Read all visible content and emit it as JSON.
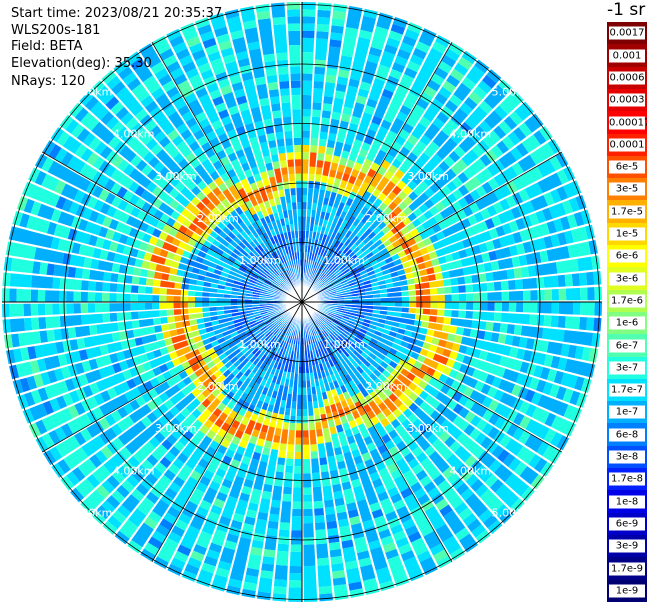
{
  "info": {
    "start_time": "Start time: 2023/08/21 20:35:37",
    "device": "WLS200s-181",
    "field": "Field: BETA",
    "elevation": "Elevation(deg): 35.30",
    "nrays": "NRays: 120"
  },
  "chart_data": {
    "type": "heatmap",
    "projection": "polar",
    "field": "BETA",
    "unit_label": "-1 sr",
    "nrays": 120,
    "range_rings_km": [
      1.0,
      2.0,
      3.0,
      4.0,
      5.0
    ],
    "ring_labels": [
      "1.00km",
      "2.00km",
      "3.00km",
      "4.00km",
      "5.00km"
    ],
    "max_range_km": 5.0,
    "colorbar": {
      "labels": [
        "0.0017",
        "0.001",
        "0.0006",
        "0.0003",
        "0.00017",
        "0.0001",
        "6e-5",
        "3e-5",
        "1.7e-5",
        "1e-5",
        "6e-6",
        "3e-6",
        "1.7e-6",
        "1e-6",
        "6e-7",
        "3e-7",
        "1.7e-7",
        "1e-7",
        "6e-8",
        "3e-8",
        "1.7e-8",
        "1e-8",
        "6e-9",
        "3e-9",
        "1.7e-9",
        "1e-9"
      ],
      "colors": [
        "#7f0000",
        "#a00000",
        "#c80000",
        "#e60000",
        "#ff0000",
        "#ff2000",
        "#ff5000",
        "#ff8000",
        "#ffb000",
        "#ffd800",
        "#ffff00",
        "#e0ff20",
        "#b0ff50",
        "#80ff80",
        "#50ffb0",
        "#20ffe0",
        "#00e0ff",
        "#00b0ff",
        "#0080ff",
        "#0050ff",
        "#0020ff",
        "#0000e8",
        "#0000c8",
        "#0000a8",
        "#000088",
        "#000070"
      ]
    },
    "features": {
      "background_level": "1.7e-7",
      "inner_level": "6e-8",
      "peak_ring_km": 2.2,
      "peak_level": "3e-5"
    }
  },
  "colors": {
    "ring_line": "#000000",
    "spoke_line": "#000000",
    "ray_separator": "#ffffff"
  }
}
